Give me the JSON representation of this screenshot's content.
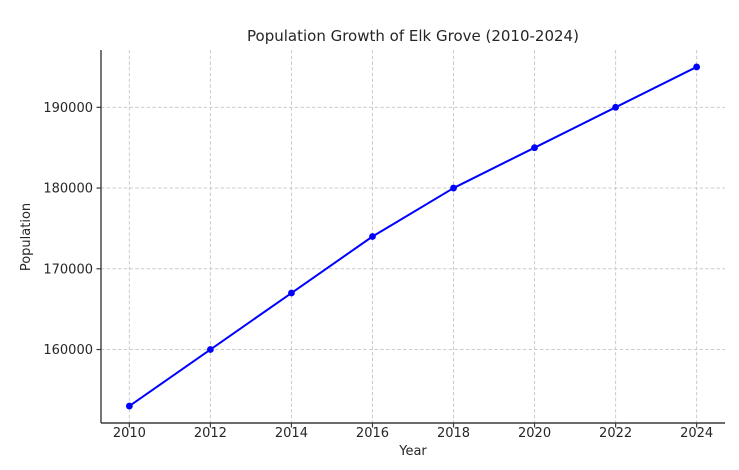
{
  "chart_data": {
    "type": "line",
    "title": "Population Growth of Elk Grove (2010-2024)",
    "xlabel": "Year",
    "ylabel": "Population",
    "x": [
      2010,
      2012,
      2014,
      2016,
      2018,
      2020,
      2022,
      2024
    ],
    "series": [
      {
        "name": "Population",
        "values": [
          153000,
          160000,
          167000,
          174000,
          180000,
          185000,
          190000,
          195000
        ]
      }
    ],
    "xticks": [
      2010,
      2012,
      2014,
      2016,
      2018,
      2020,
      2022,
      2024
    ],
    "yticks": [
      160000,
      170000,
      180000,
      190000
    ],
    "xlim": [
      2009.3,
      2024.7
    ],
    "ylim": [
      150900,
      197100
    ],
    "grid": "dashed-both-axes",
    "legend": "none",
    "marker": "circle",
    "spines": "left-bottom-only"
  },
  "colors": {
    "line": "#0000ff",
    "grid": "#cccccc",
    "spine": "#3c3c3c",
    "text": "#262626",
    "background": "#ffffff"
  }
}
